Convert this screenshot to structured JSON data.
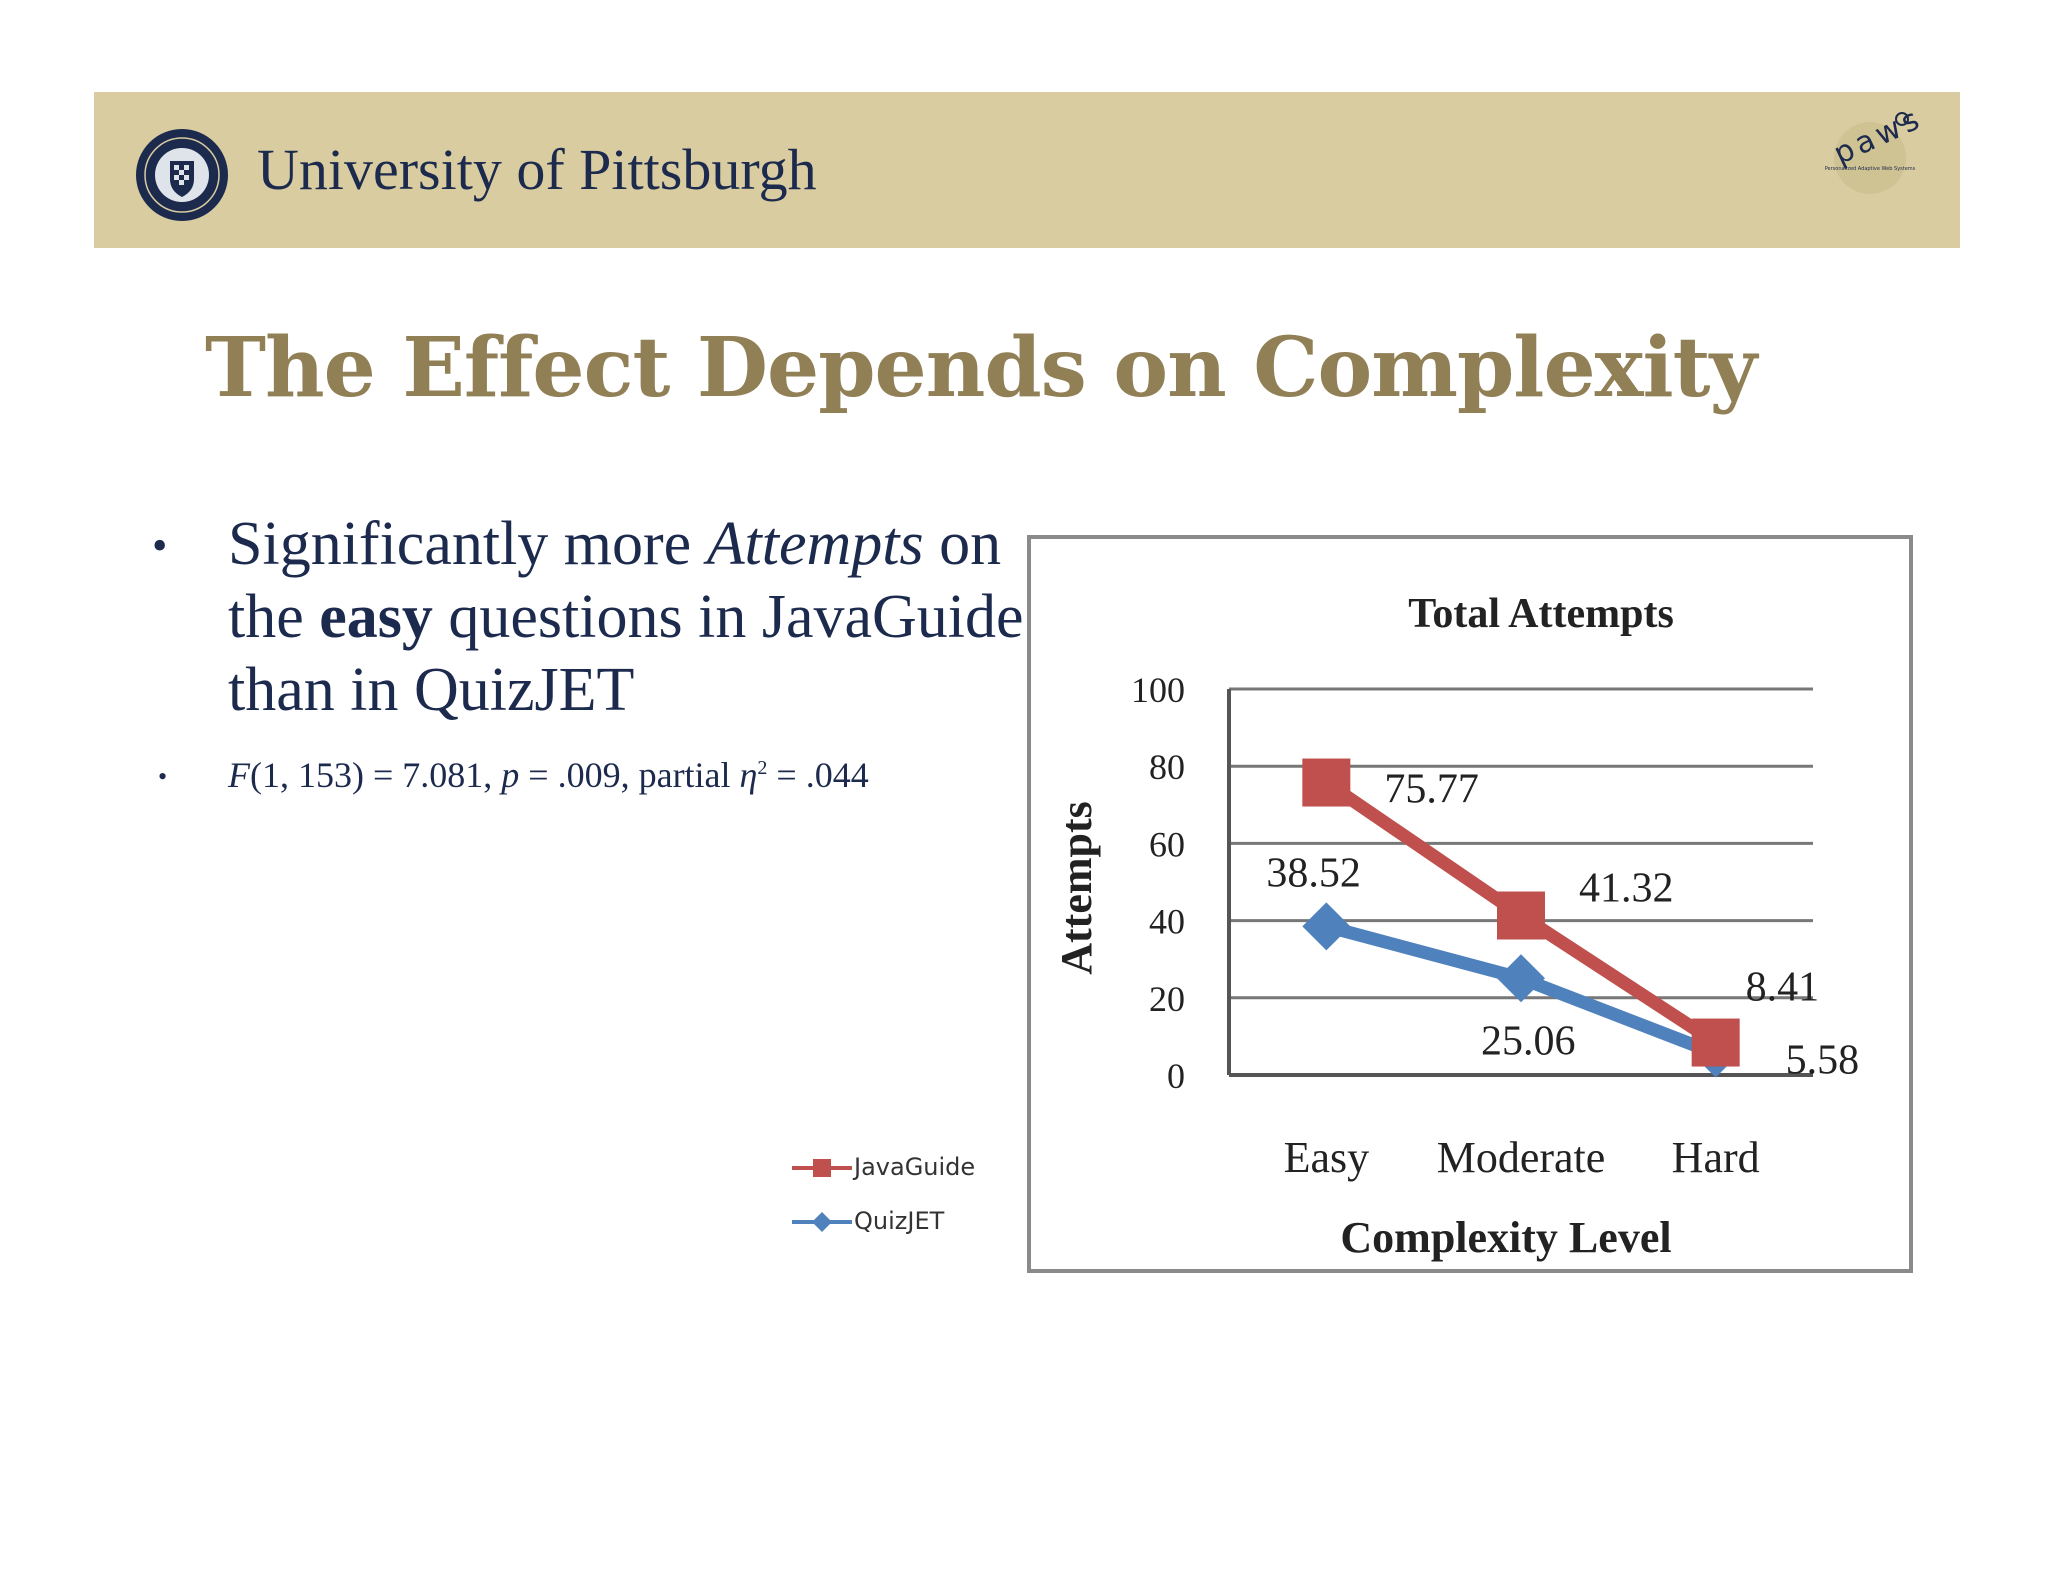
{
  "header": {
    "university_name": "University of Pittsburgh",
    "seal_icon": "university-seal-icon",
    "logo_icon": "paws-logo-icon",
    "logo_text": "paws",
    "logo_caption": "Personalized Adaptive Web Systems",
    "background_color": "#d9cca0"
  },
  "slide": {
    "title": "The Effect Depends on Complexity",
    "bullet1": {
      "part1": "Significantly more ",
      "italic": "Attempts",
      "part2": " on the ",
      "bold": "easy",
      "part3": " questions in JavaGuide than in QuizJET"
    },
    "bullet2": {
      "f": "F",
      "f_args": "(1, 153) = 7.081, ",
      "p": "p",
      "p_val": " = .009, partial ",
      "eta": "η",
      "sup": "2",
      "eta_val": " = .044"
    }
  },
  "legend": {
    "items": [
      {
        "label": "JavaGuide",
        "color": "#c0504d",
        "marker": "square"
      },
      {
        "label": "QuizJET",
        "color": "#4f81bd",
        "marker": "diamond"
      }
    ]
  },
  "chart_data": {
    "type": "line",
    "title": "Total Attempts",
    "xlabel": "Complexity Level",
    "ylabel": "Attempts",
    "categories": [
      "Easy",
      "Moderate",
      "Hard"
    ],
    "ylim": [
      0,
      100
    ],
    "yticks": [
      0,
      20,
      40,
      60,
      80,
      100
    ],
    "grid": true,
    "series": [
      {
        "name": "JavaGuide",
        "values": [
          75.77,
          41.32,
          8.41
        ],
        "labels": [
          "75.77",
          "41.32",
          "8.41"
        ],
        "color": "#c0504d",
        "marker": "square"
      },
      {
        "name": "QuizJET",
        "values": [
          38.52,
          25.06,
          5.58
        ],
        "labels": [
          "38.52",
          "25.06",
          "5.58"
        ],
        "color": "#4f81bd",
        "marker": "diamond"
      }
    ]
  }
}
